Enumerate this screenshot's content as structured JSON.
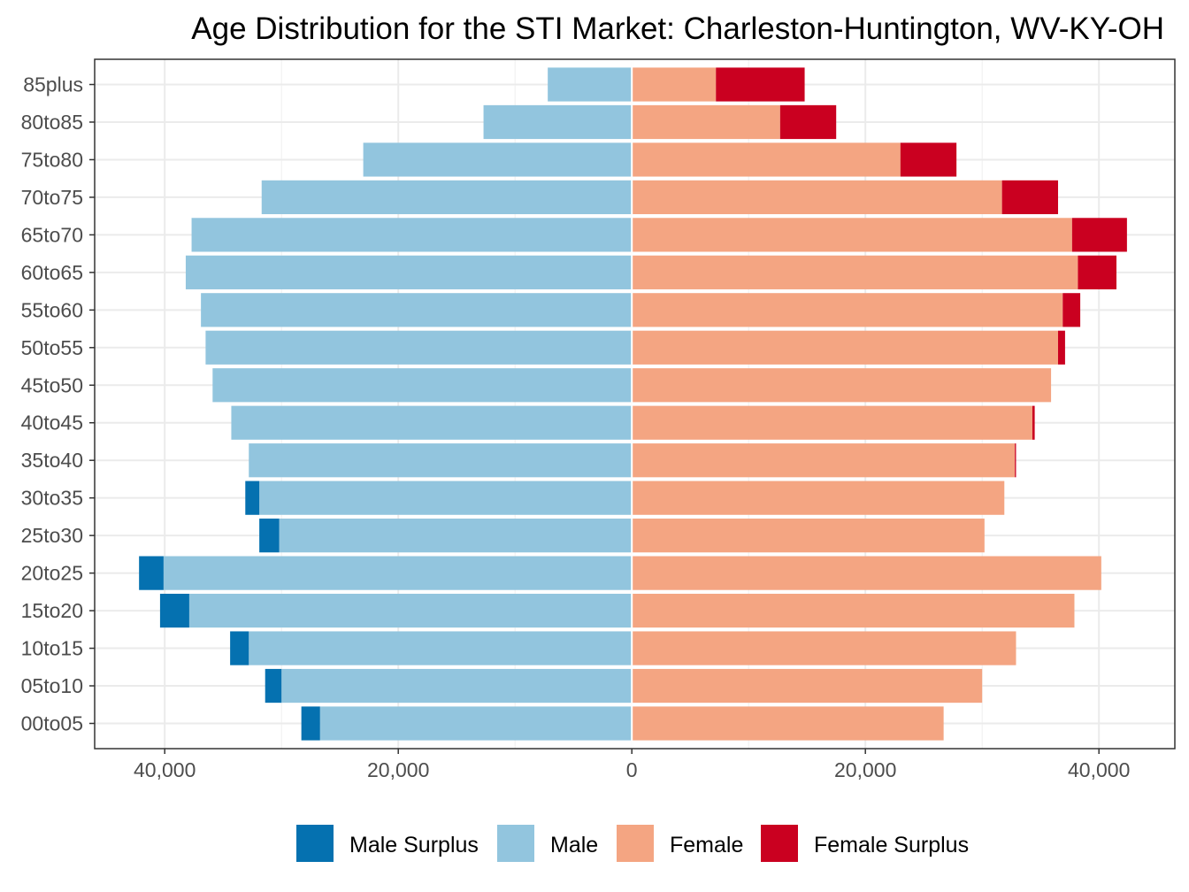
{
  "chart_data": {
    "type": "bar",
    "orientation": "horizontal",
    "layout": "population-pyramid",
    "title": "Age Distribution for the STI Market: Charleston-Huntington, WV-KY-OH",
    "categories": [
      "00to05",
      "05to10",
      "10to15",
      "15to20",
      "20to25",
      "25to30",
      "30to35",
      "35to40",
      "40to45",
      "45to50",
      "50to55",
      "55to60",
      "60to65",
      "65to70",
      "70to75",
      "75to80",
      "80to85",
      "85plus"
    ],
    "xlim": [
      -46000,
      46500
    ],
    "x_ticks": [
      -40000,
      -20000,
      0,
      20000,
      40000
    ],
    "x_tick_labels": [
      "40,000",
      "20,000",
      "0",
      "20,000",
      "40,000"
    ],
    "grid": true,
    "legend_position": "bottom",
    "series": [
      {
        "name": "Male Surplus",
        "key": "male_surplus",
        "color": "#0571b0",
        "side": "left",
        "values": [
          1600,
          1400,
          1600,
          2500,
          2100,
          1700,
          1200,
          0,
          0,
          0,
          0,
          0,
          0,
          0,
          0,
          0,
          0,
          0
        ]
      },
      {
        "name": "Male",
        "key": "male",
        "color": "#92c5de",
        "side": "left",
        "values": [
          26700,
          30000,
          32800,
          37900,
          40100,
          30200,
          31900,
          32800,
          34300,
          35900,
          36500,
          36900,
          38200,
          37700,
          31700,
          23000,
          12700,
          7200
        ]
      },
      {
        "name": "Female",
        "key": "female",
        "color": "#f4a582",
        "side": "right",
        "values": [
          26700,
          30000,
          32900,
          37900,
          40200,
          30200,
          31900,
          32800,
          34300,
          35900,
          36500,
          36900,
          38200,
          37700,
          31700,
          23000,
          12700,
          7200
        ]
      },
      {
        "name": "Female Surplus",
        "key": "female_surplus",
        "color": "#ca0020",
        "side": "right",
        "values": [
          0,
          0,
          0,
          0,
          0,
          0,
          0,
          100,
          200,
          0,
          600,
          1500,
          3300,
          4700,
          4800,
          4800,
          4800,
          7600
        ]
      }
    ]
  }
}
